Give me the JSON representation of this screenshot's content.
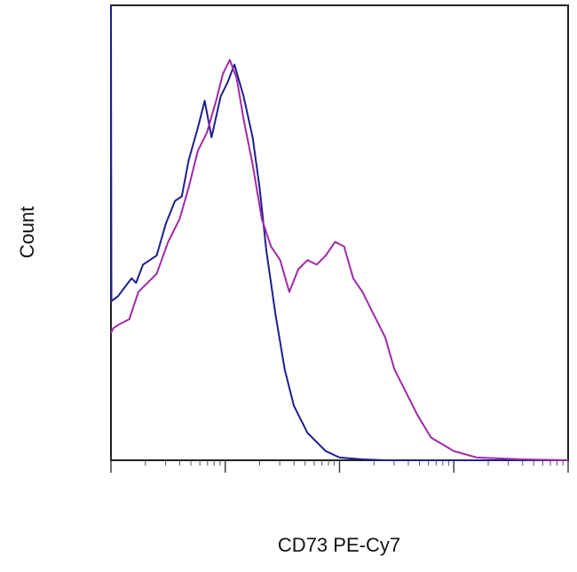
{
  "chart_data": {
    "type": "line",
    "title": "",
    "xlabel": "CD73 PE-Cy7",
    "ylabel": "Count",
    "x_scale": "log",
    "xlim": [
      0,
      100
    ],
    "ylim": [
      0,
      100
    ],
    "grid": false,
    "series": [
      {
        "color": "#1e1e8c",
        "x": [
          0,
          0.1,
          1.5,
          3,
          4.5,
          5.5,
          7,
          10,
          12,
          14,
          15.5,
          17,
          19,
          20.5,
          22,
          24,
          25.5,
          27,
          29,
          31,
          32.5,
          34,
          36,
          38,
          40,
          43,
          47,
          50,
          55,
          60,
          70,
          100
        ],
        "y": [
          100,
          35,
          36,
          38,
          40,
          39,
          43,
          45,
          52,
          57,
          58,
          66,
          73,
          79,
          71,
          80,
          83,
          87,
          80,
          71,
          60,
          46,
          32,
          20,
          12,
          6,
          2,
          0.6,
          0.2,
          0,
          0,
          0
        ]
      },
      {
        "color": "#a02aa8",
        "x": [
          0,
          0.5,
          2,
          4,
          6,
          8,
          10,
          12.5,
          15,
          17,
          19,
          21,
          23,
          24.5,
          26,
          27.5,
          29,
          31,
          33,
          35,
          37,
          39,
          41,
          43,
          45,
          47,
          49,
          51,
          53,
          55,
          57,
          60,
          62,
          65,
          67,
          70,
          75,
          80,
          90,
          100
        ],
        "y": [
          28,
          29,
          30,
          31,
          37,
          39,
          41,
          48,
          53,
          60,
          68,
          72,
          79,
          85,
          88,
          84,
          75,
          65,
          53,
          47,
          44,
          37,
          42,
          44,
          43,
          45,
          48,
          47,
          40,
          37,
          33,
          27,
          20,
          14,
          10,
          5,
          2,
          0.6,
          0.2,
          0
        ]
      }
    ]
  }
}
